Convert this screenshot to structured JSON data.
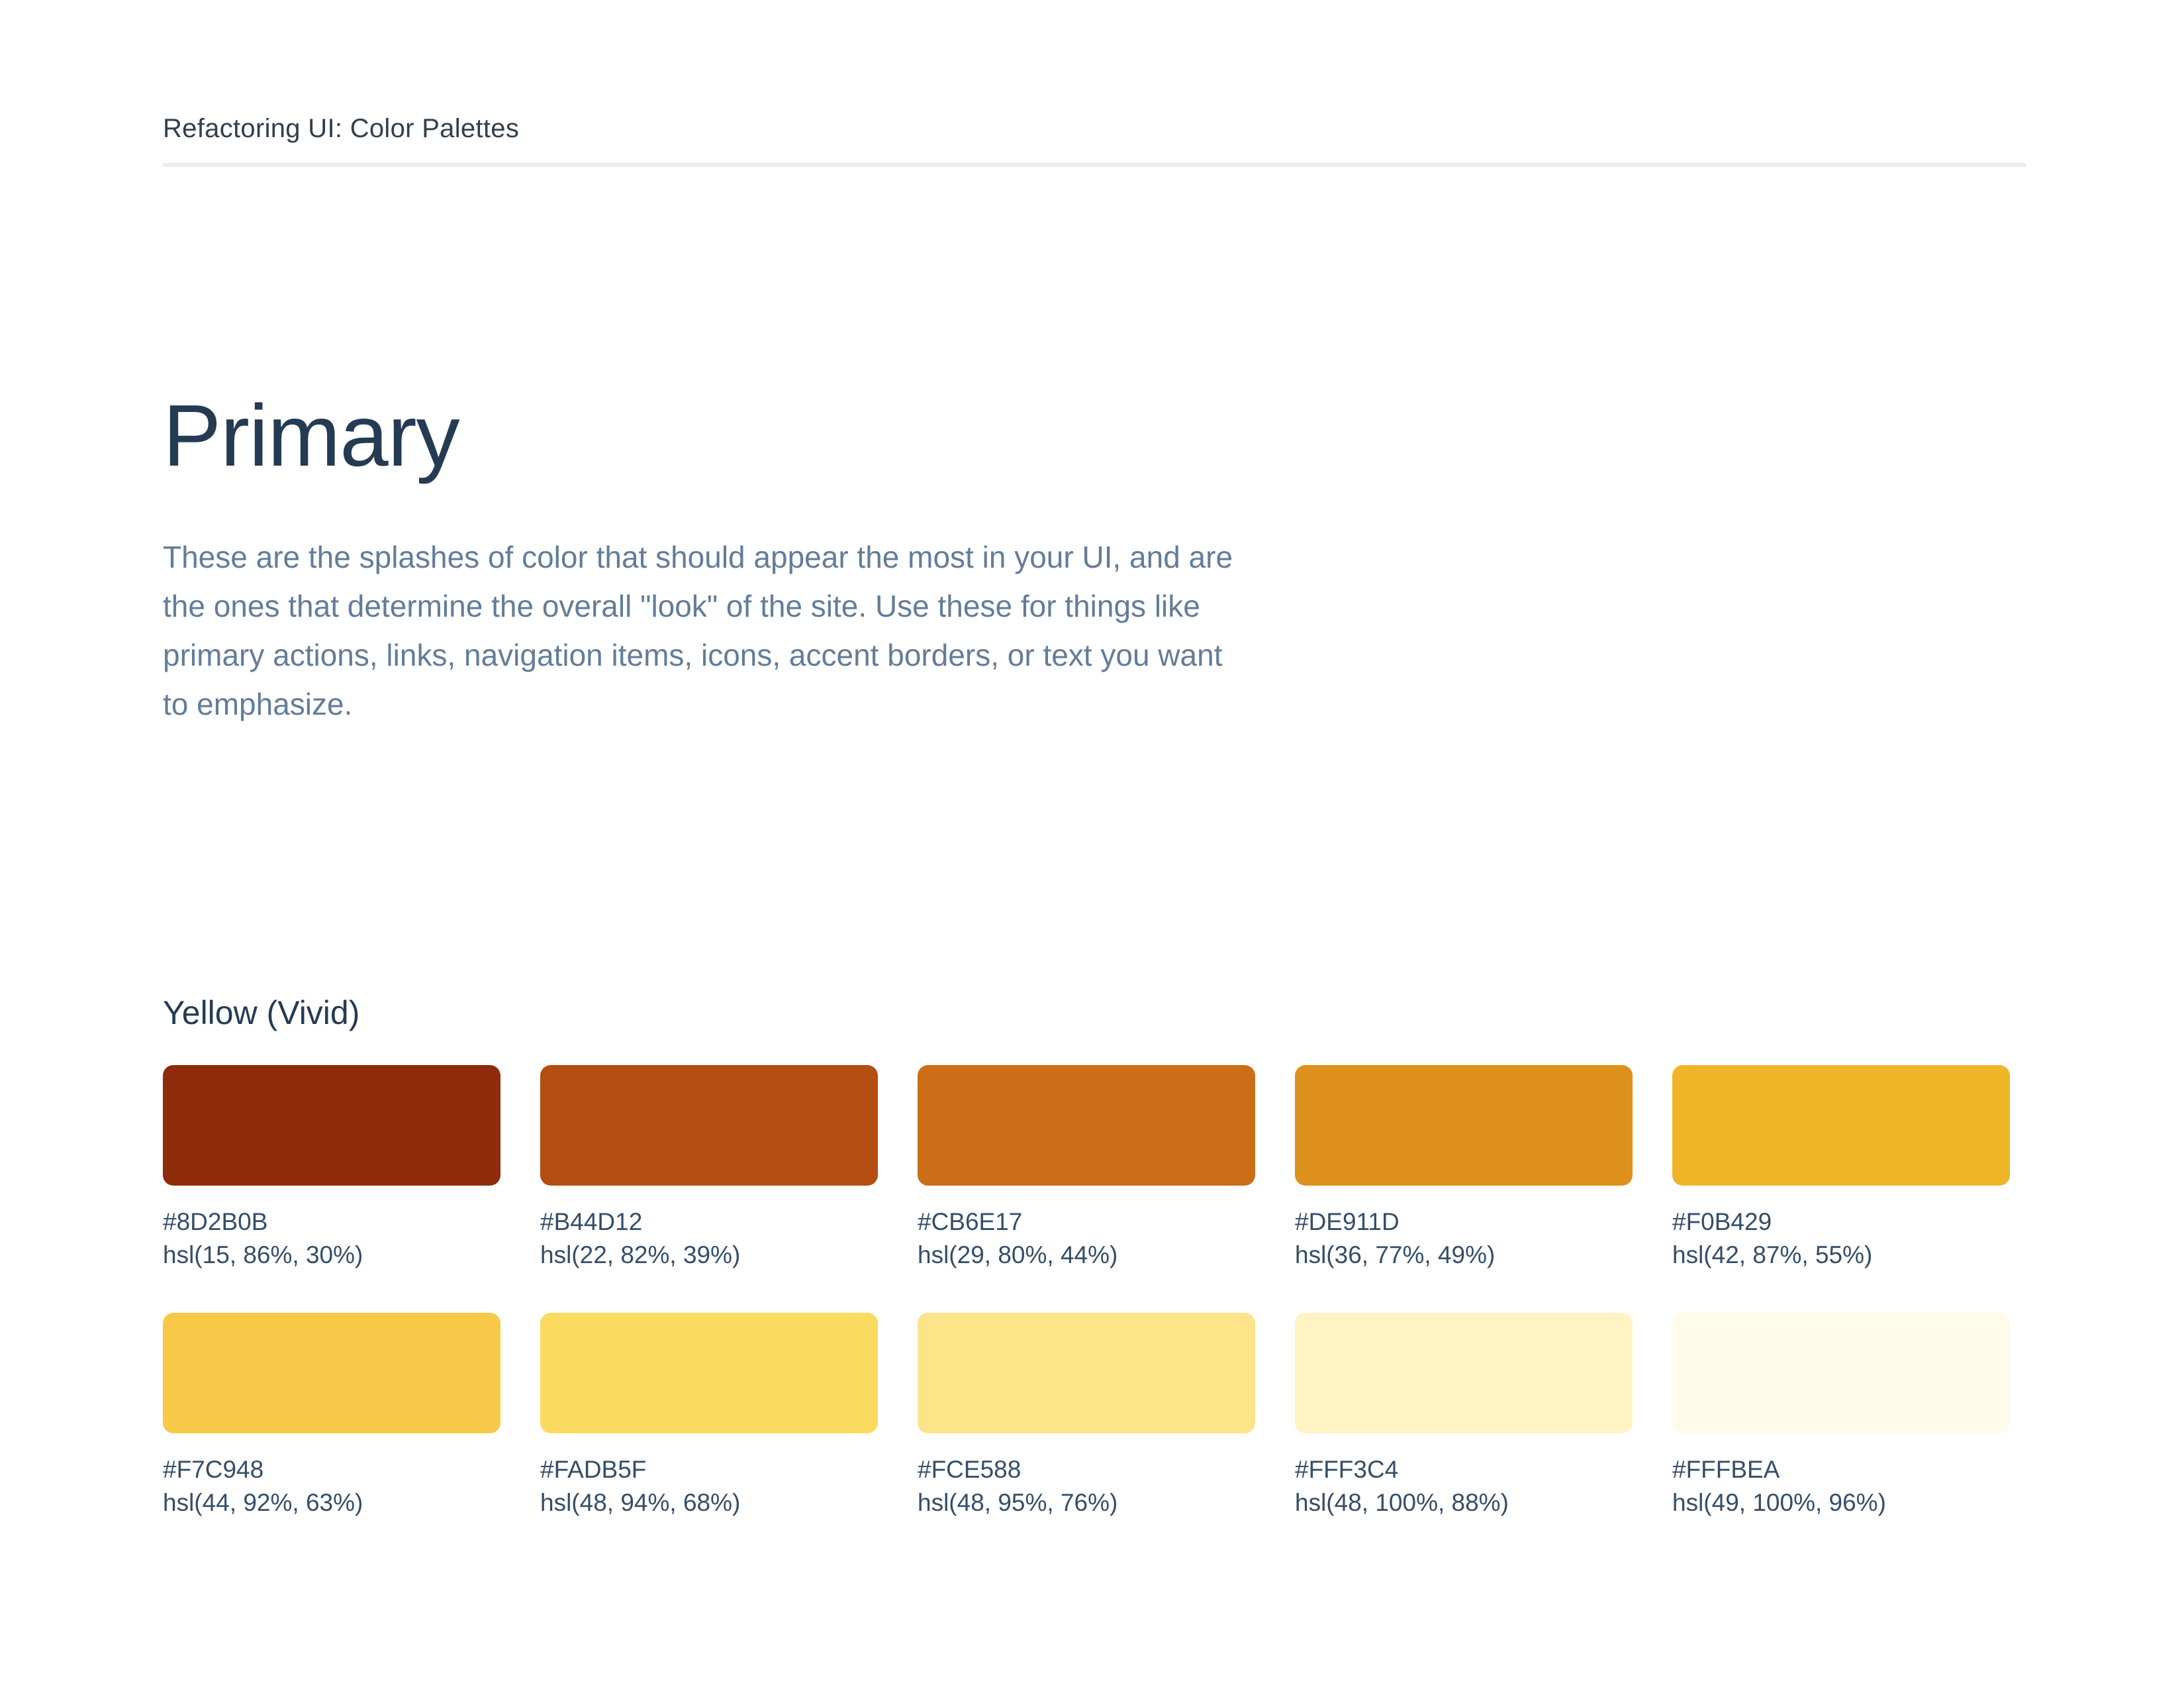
{
  "header": {
    "title": "Refactoring UI: Color Palettes"
  },
  "section": {
    "title": "Primary",
    "description": "These are the splashes of color that should appear the most in your UI, and are the ones that determine the overall \"look\" of the site. Use these for things like primary actions, links, navigation items, icons, accent borders, or text you want to emphasize."
  },
  "palette": {
    "name": "Yellow (Vivid)",
    "swatches": [
      {
        "hex": "#8D2B0B",
        "hsl": "hsl(15, 86%, 30%)"
      },
      {
        "hex": "#B44D12",
        "hsl": "hsl(22, 82%, 39%)"
      },
      {
        "hex": "#CB6E17",
        "hsl": "hsl(29, 80%, 44%)"
      },
      {
        "hex": "#DE911D",
        "hsl": "hsl(36, 77%, 49%)"
      },
      {
        "hex": "#F0B429",
        "hsl": "hsl(42, 87%, 55%)"
      },
      {
        "hex": "#F7C948",
        "hsl": "hsl(44, 92%, 63%)"
      },
      {
        "hex": "#FADB5F",
        "hsl": "hsl(48, 94%, 68%)"
      },
      {
        "hex": "#FCE588",
        "hsl": "hsl(48, 95%, 76%)"
      },
      {
        "hex": "#FFF3C4",
        "hsl": "hsl(48, 100%, 88%)"
      },
      {
        "hex": "#FFFBEA",
        "hsl": "hsl(49, 100%, 96%)"
      }
    ]
  },
  "colors": {
    "heading": "#243B53",
    "body_text": "#627D98",
    "label_text": "#334E68",
    "header_text": "#323F4B",
    "divider": "#E9EDF2",
    "background": "#FFFFFF"
  }
}
